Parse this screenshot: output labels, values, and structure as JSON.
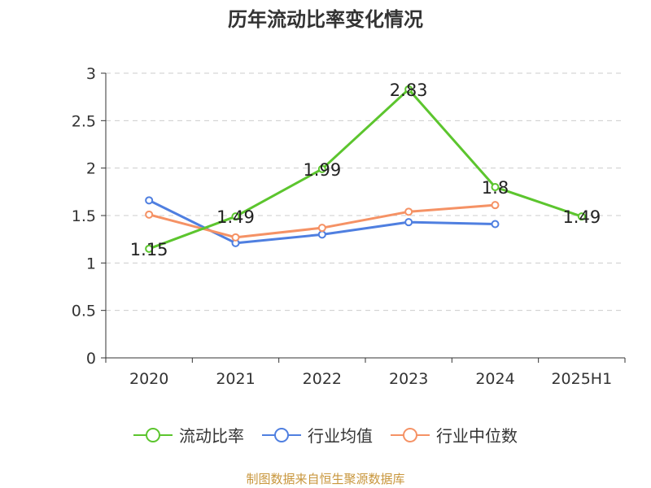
{
  "chart_data": {
    "type": "line",
    "title": "历年流动比率变化情况",
    "categories": [
      "2020",
      "2021",
      "2022",
      "2023",
      "2024",
      "2025H1"
    ],
    "ylim": [
      0,
      3
    ],
    "yticks": [
      "0",
      "0.5",
      "1",
      "1.5",
      "2",
      "2.5",
      "3"
    ],
    "grid": true,
    "legend_position": "bottom",
    "series": [
      {
        "name": "流动比率",
        "color": "#5cc52e",
        "values": [
          1.15,
          1.49,
          1.99,
          2.83,
          1.8,
          1.49
        ],
        "labels": [
          "1.15",
          "1.49",
          "1.99",
          "2.83",
          "1.8",
          "1.49"
        ]
      },
      {
        "name": "行业均值",
        "color": "#4f7fe0",
        "values": [
          1.66,
          1.21,
          1.3,
          1.43,
          1.41,
          null
        ],
        "labels": []
      },
      {
        "name": "行业中位数",
        "color": "#f59265",
        "values": [
          1.51,
          1.27,
          1.37,
          1.54,
          1.61,
          null
        ],
        "labels": []
      }
    ]
  },
  "source": "制图数据来自恒生聚源数据库"
}
